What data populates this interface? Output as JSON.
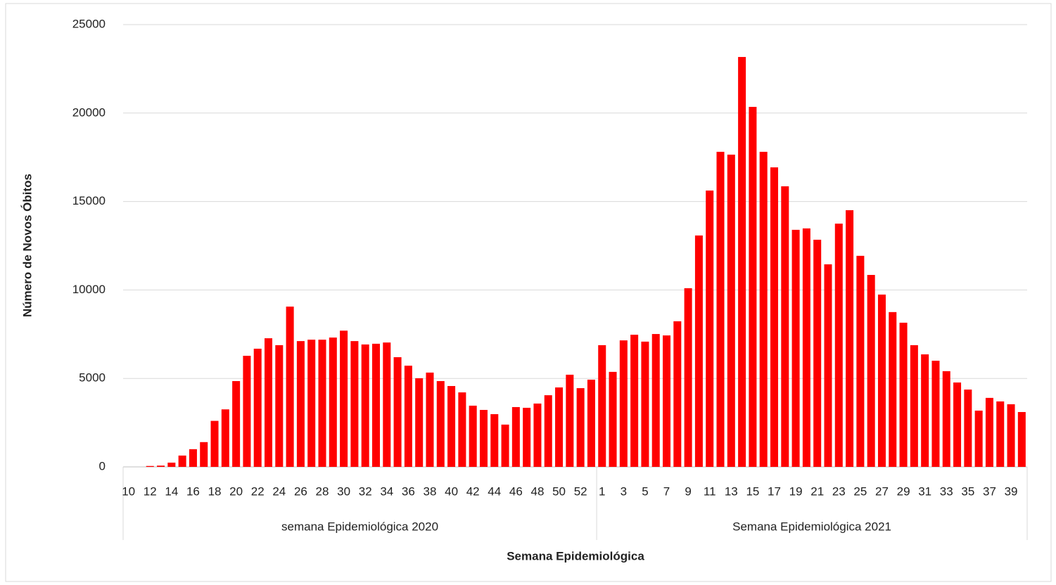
{
  "chart_data": {
    "type": "bar",
    "y_label": "Número de Novos Óbitos",
    "x_label": "Semana Epidemiológica",
    "color": "#ff0000",
    "ylim": [
      0,
      25000
    ],
    "yticks": [
      0,
      5000,
      10000,
      15000,
      20000,
      25000
    ],
    "grid": true,
    "groups": [
      {
        "name": "semana Epidemiológica 2020",
        "categories": [
          10,
          null,
          12,
          null,
          14,
          null,
          16,
          null,
          18,
          null,
          20,
          null,
          22,
          null,
          24,
          null,
          26,
          null,
          28,
          null,
          30,
          null,
          32,
          null,
          34,
          null,
          36,
          null,
          38,
          null,
          40,
          null,
          42,
          null,
          44,
          null,
          46,
          null,
          48,
          null,
          50,
          null,
          52,
          null
        ],
        "values": [
          0,
          0,
          50,
          70,
          240,
          640,
          1000,
          1400,
          2600,
          3250,
          4850,
          6280,
          6680,
          7270,
          6880,
          9060,
          7110,
          7190,
          7190,
          7310,
          7700,
          7110,
          6920,
          6960,
          7030,
          6200,
          5720,
          5010,
          5330,
          4850,
          4570,
          4210,
          3460,
          3220,
          2980,
          2390,
          3380,
          3340,
          3580,
          4050,
          4490,
          5210,
          4450,
          4930
        ]
      },
      {
        "name": "Semana Epidemiológica 2021",
        "categories": [
          1,
          null,
          3,
          null,
          5,
          null,
          7,
          null,
          9,
          null,
          11,
          null,
          13,
          null,
          15,
          null,
          17,
          null,
          19,
          null,
          21,
          null,
          23,
          null,
          25,
          null,
          27,
          null,
          29,
          null,
          31,
          null,
          33,
          null,
          35,
          null,
          37,
          null,
          39,
          null
        ],
        "values": [
          6880,
          5370,
          7150,
          7470,
          7080,
          7510,
          7430,
          8230,
          10100,
          13080,
          15620,
          17810,
          17650,
          23170,
          20350,
          17810,
          16930,
          15860,
          13400,
          13480,
          12840,
          11450,
          13750,
          14510,
          11930,
          10850,
          9740,
          8750,
          8150,
          6880,
          6360,
          6000,
          5410,
          4770,
          4370,
          3180,
          3900,
          3700,
          3540,
          3100
        ]
      }
    ]
  }
}
